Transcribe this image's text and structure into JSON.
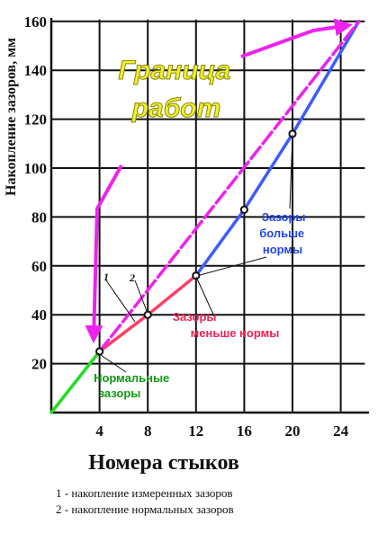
{
  "chart_data": {
    "type": "line",
    "xlabel": "Номера  стыков",
    "ylabel": "Накопление зазоров, мм",
    "xlim": [
      0,
      26
    ],
    "ylim": [
      0,
      160
    ],
    "x_ticks": [
      "4",
      "8",
      "12",
      "16",
      "20",
      "24"
    ],
    "y_ticks": [
      "20",
      "40",
      "60",
      "80",
      "100",
      "120",
      "140",
      "160"
    ],
    "grid": true,
    "series": [
      {
        "label": "1",
        "color": "#ff3d66",
        "x": [
          4,
          8,
          12
        ],
        "y": [
          25,
          40,
          56
        ]
      },
      {
        "label": "",
        "color": "#22dd22",
        "x": [
          0,
          4
        ],
        "y": [
          0,
          25
        ]
      },
      {
        "label": "",
        "color": "#3d5cff",
        "x": [
          12,
          16,
          20,
          25.5
        ],
        "y": [
          56,
          83,
          114,
          160
        ]
      },
      {
        "label": "2",
        "color": "#ee22ee",
        "dashed": true,
        "x": [
          4,
          25.5
        ],
        "y": [
          25,
          160
        ]
      }
    ],
    "measured_points": {
      "x": [
        4,
        8,
        12,
        16,
        20
      ],
      "y": [
        25,
        40,
        56,
        83,
        114
      ]
    },
    "annotations": {
      "border": "Граница работ",
      "normal": "Нормальные зазоры",
      "less": "Зазоры меньше нормы",
      "more": "Зазоры больше нормы",
      "label_1": "1",
      "label_2": "2"
    },
    "legend": [
      "1 - накопление измеренных зазоров",
      "2 - накопление нормальных зазоров"
    ]
  },
  "colors": {
    "normal": "#119911",
    "less": "#ee2255",
    "more": "#2244ee",
    "arrow": "#ee22ee",
    "border_text": "#f2ef2a"
  }
}
